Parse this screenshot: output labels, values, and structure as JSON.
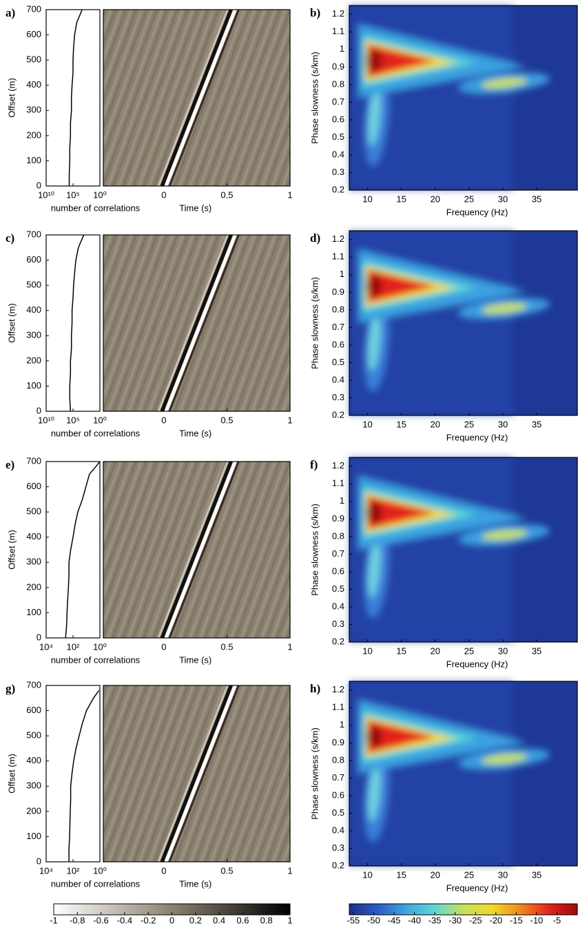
{
  "chart_data": [
    {
      "type": "line",
      "label": "a)",
      "xlabel": "number of correlations",
      "ylabel": "Offset (m)",
      "log_x": true,
      "xlim": [
        10000000000,
        1
      ],
      "xticks": [
        {
          "value": 10000000000,
          "label": "10¹⁰"
        },
        {
          "value": 100000,
          "label": "10⁵"
        },
        {
          "value": 1,
          "label": "10⁰"
        }
      ],
      "ylim": [
        0,
        700
      ],
      "yticks": [
        0,
        100,
        200,
        300,
        400,
        500,
        600,
        700
      ],
      "series": [
        {
          "color": "#000000",
          "x": [
            500000,
            500000,
            400000,
            400000,
            300000,
            300000,
            200000,
            200000,
            150000,
            100000,
            100000,
            80000,
            50000,
            20000,
            2000
          ],
          "values": [
            0,
            50,
            100,
            150,
            200,
            250,
            300,
            350,
            400,
            450,
            500,
            550,
            600,
            650,
            700
          ]
        }
      ]
    },
    {
      "type": "image",
      "xlabel": "Time (s)",
      "xlim": [
        -0.48,
        1
      ],
      "xticks": [
        0,
        0.5,
        1
      ]
    },
    {
      "type": "heatmap",
      "label": "b)",
      "xlabel": "Frequency (Hz)",
      "ylabel": "Phase slowness (s/km)",
      "xlim": [
        7.3,
        41
      ],
      "xticks": [
        10,
        15,
        20,
        25,
        30,
        35
      ],
      "ylim": [
        0.2,
        1.25
      ],
      "yticks": [
        0.2,
        0.3,
        0.4,
        0.5,
        0.6,
        0.7,
        0.8,
        0.9,
        1,
        1.1,
        1.2
      ]
    },
    {
      "type": "line",
      "label": "c)",
      "xlabel": "number of correlations",
      "ylabel": "Offset (m)",
      "log_x": true,
      "xlim": [
        10000000000,
        1
      ],
      "xticks": [
        {
          "value": 10000000000,
          "label": "10¹⁰"
        },
        {
          "value": 100000,
          "label": "10⁵"
        },
        {
          "value": 1,
          "label": "10⁰"
        }
      ],
      "ylim": [
        0,
        700
      ],
      "yticks": [
        0,
        100,
        200,
        300,
        400,
        500,
        600,
        700
      ],
      "series": [
        {
          "color": "#000000",
          "x": [
            300000,
            400000,
            400000,
            300000,
            300000,
            200000,
            200000,
            150000,
            150000,
            100000,
            80000,
            50000,
            30000,
            10000,
            1000
          ],
          "values": [
            0,
            50,
            100,
            150,
            200,
            250,
            300,
            350,
            400,
            450,
            500,
            550,
            600,
            650,
            700
          ]
        }
      ]
    },
    {
      "type": "image",
      "xlabel": "Time (s)",
      "xlim": [
        -0.48,
        1
      ],
      "xticks": [
        0,
        0.5,
        1
      ]
    },
    {
      "type": "heatmap",
      "label": "d)",
      "xlabel": "Frequency (Hz)",
      "ylabel": "Phase slowness (s/km)",
      "xlim": [
        7.3,
        41
      ],
      "xticks": [
        10,
        15,
        20,
        25,
        30,
        35
      ],
      "ylim": [
        0.2,
        1.25
      ],
      "yticks": [
        0.2,
        0.3,
        0.4,
        0.5,
        0.6,
        0.7,
        0.8,
        0.9,
        1,
        1.1,
        1.2
      ]
    },
    {
      "type": "line",
      "label": "e)",
      "xlabel": "number of correlations",
      "ylabel": "Offset (m)",
      "log_x": true,
      "xlim": [
        10000,
        1
      ],
      "xticks": [
        {
          "value": 10000,
          "label": "10⁴"
        },
        {
          "value": 100,
          "label": "10²"
        },
        {
          "value": 1,
          "label": "10⁰"
        }
      ],
      "ylim": [
        0,
        700
      ],
      "yticks": [
        0,
        100,
        200,
        300,
        400,
        500,
        600,
        700
      ],
      "series": [
        {
          "color": "#000000",
          "x": [
            360,
            300,
            280,
            250,
            220,
            200,
            200,
            150,
            100,
            70,
            44,
            20,
            11,
            6,
            2,
            1
          ],
          "values": [
            0,
            50,
            100,
            150,
            200,
            250,
            300,
            350,
            400,
            450,
            500,
            550,
            600,
            650,
            680,
            700
          ]
        }
      ]
    },
    {
      "type": "image",
      "xlabel": "Time (s)",
      "xlim": [
        -0.48,
        1
      ],
      "xticks": [
        0,
        0.5,
        1
      ]
    },
    {
      "type": "heatmap",
      "label": "f)",
      "xlabel": "Frequency (Hz)",
      "ylabel": "Phase slowness (s/km)",
      "xlim": [
        7.3,
        41
      ],
      "xticks": [
        10,
        15,
        20,
        25,
        30,
        35
      ],
      "ylim": [
        0.2,
        1.25
      ],
      "yticks": [
        0.2,
        0.3,
        0.4,
        0.5,
        0.6,
        0.7,
        0.8,
        0.9,
        1,
        1.1,
        1.2
      ]
    },
    {
      "type": "line",
      "label": "g)",
      "xlabel": "number of correlations",
      "ylabel": "Offset (m)",
      "log_x": true,
      "xlim": [
        10000,
        1
      ],
      "xticks": [
        {
          "value": 10000,
          "label": "10⁴"
        },
        {
          "value": 100,
          "label": "10²"
        },
        {
          "value": 1,
          "label": "10⁰"
        }
      ],
      "ylim": [
        0,
        700
      ],
      "yticks": [
        0,
        100,
        200,
        300,
        400,
        500,
        600,
        700
      ],
      "series": [
        {
          "color": "#000000",
          "x": [
            200,
            200,
            180,
            170,
            160,
            150,
            150,
            120,
            90,
            60,
            35,
            20,
            10,
            3,
            1.2
          ],
          "values": [
            0,
            50,
            100,
            150,
            200,
            250,
            300,
            350,
            400,
            450,
            500,
            550,
            600,
            650,
            680
          ]
        }
      ]
    },
    {
      "type": "image",
      "xlabel": "Time (s)",
      "xlim": [
        -0.48,
        1
      ],
      "xticks": [
        0,
        0.5,
        1
      ]
    },
    {
      "type": "heatmap",
      "label": "h)",
      "xlabel": "Frequency (Hz)",
      "ylabel": "Phase slowness (s/km)",
      "xlim": [
        7.3,
        41
      ],
      "xticks": [
        10,
        15,
        20,
        25,
        30,
        35
      ],
      "ylim": [
        0.2,
        1.25
      ],
      "yticks": [
        0.2,
        0.3,
        0.4,
        0.5,
        0.6,
        0.7,
        0.8,
        0.9,
        1,
        1.1,
        1.2
      ]
    },
    {
      "type": "colorbar",
      "colors": [
        "#ffffff",
        "#8b8170",
        "#000000"
      ],
      "xlim": [
        -1,
        1
      ],
      "xticks": [
        -1,
        -0.8,
        -0.6,
        -0.4,
        -0.2,
        0,
        0.2,
        0.4,
        0.6,
        0.8,
        1
      ]
    },
    {
      "type": "colorbar",
      "colors": [
        "#1a2f8a",
        "#2a5cc8",
        "#3fa6e0",
        "#5fd6d6",
        "#c8e05a",
        "#f2d92a",
        "#f08a1e",
        "#e4231e",
        "#9a0c0c"
      ],
      "xlim": [
        -56,
        0
      ],
      "xticks": [
        -55,
        -50,
        -45,
        -40,
        -35,
        -30,
        -25,
        -20,
        -15,
        -10,
        -5
      ]
    }
  ]
}
